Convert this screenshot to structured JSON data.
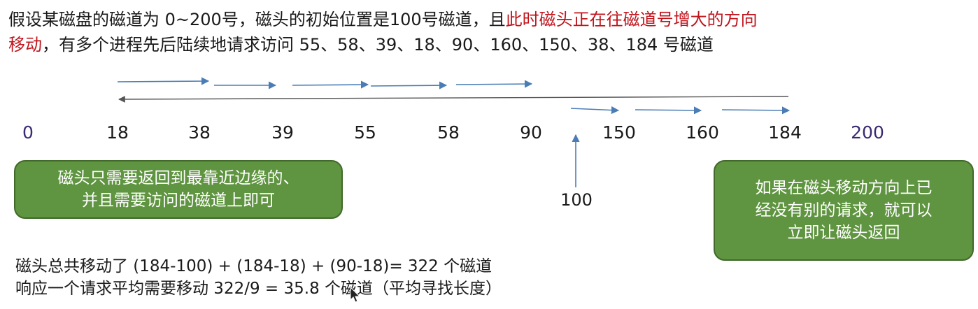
{
  "intro": {
    "line1_plain": "假设某磁盘的磁道为 0~200号，磁头的初始位置是100号磁道，且",
    "line1_red": "此时磁头正在往磁道号增大的方向",
    "line2_red": "移动",
    "line2_plain": "，有多个进程先后陆续地请求访问 55、58、39、18、90、160、150、38、184 号磁道"
  },
  "axis": {
    "ticks": [
      "0",
      "18",
      "38",
      "39",
      "55",
      "58",
      "90",
      "150",
      "160",
      "184",
      "200"
    ],
    "start_label": "100"
  },
  "callouts": {
    "left": [
      "磁头只需要返回到最靠近边缘的、",
      "并且需要访问的磁道上即可"
    ],
    "right": [
      "如果在磁头移动方向上已",
      "经没有别的请求，就可以",
      "立即让磁头返回"
    ]
  },
  "summary": {
    "line1": "磁头总共移动了  (184-100) + (184-18) + (90-18)= 322 个磁道",
    "line2": "响应一个请求平均需要移动 322/9 = 35.8 个磁道（平均寻找长度）"
  },
  "colors": {
    "accent_red": "#c0141c",
    "arrow_blue": "#4a7db5",
    "return_line": "#555555",
    "callout_green": "#5f9440",
    "axis_end_purple": "#3a2a73"
  },
  "icons": {
    "cursor": "mouse-pointer-icon"
  }
}
